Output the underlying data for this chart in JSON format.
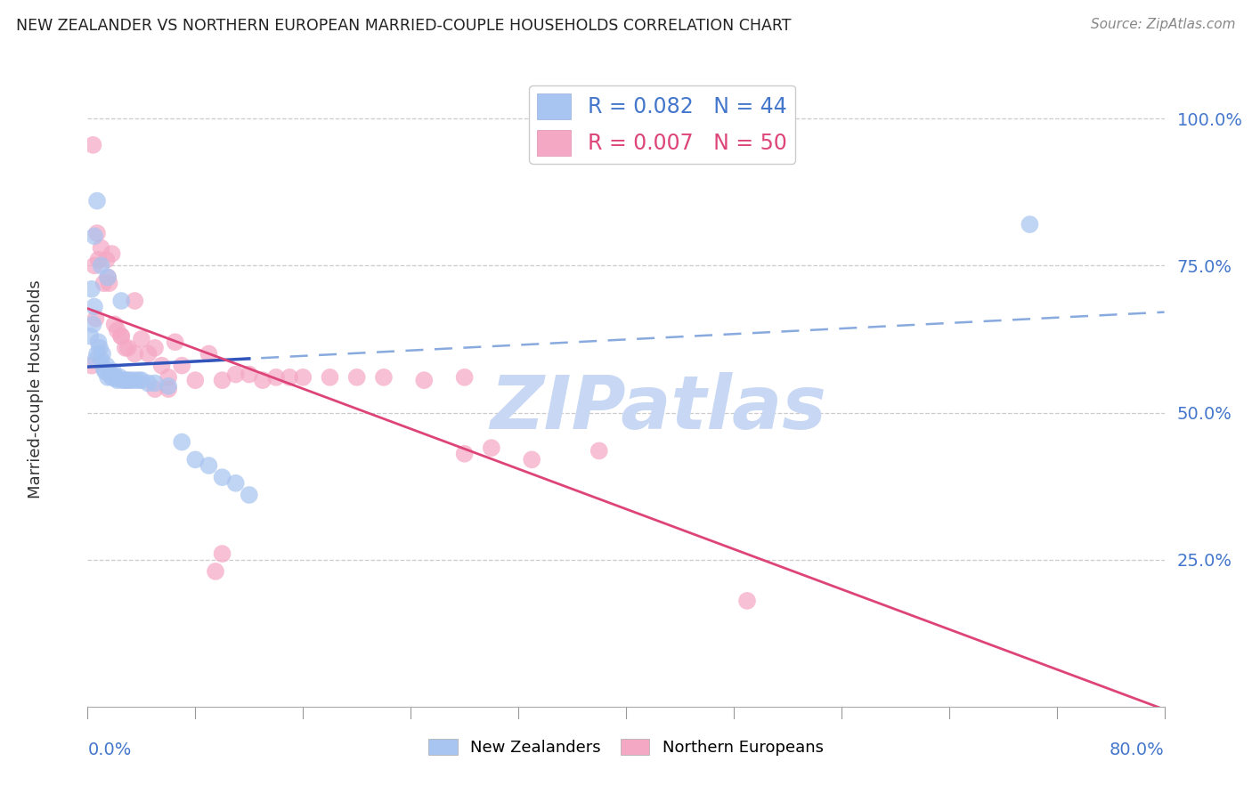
{
  "title": "NEW ZEALANDER VS NORTHERN EUROPEAN MARRIED-COUPLE HOUSEHOLDS CORRELATION CHART",
  "source": "Source: ZipAtlas.com",
  "ylabel": "Married-couple Households",
  "xtick_left_label": "0.0%",
  "xtick_right_label": "80.0%",
  "ytick_values": [
    0.25,
    0.5,
    0.75,
    1.0
  ],
  "ytick_labels": [
    "25.0%",
    "50.0%",
    "75.0%",
    "100.0%"
  ],
  "xmin": 0.0,
  "xmax": 0.8,
  "ymin": 0.0,
  "ymax": 1.08,
  "blue_scatter_color": "#a8c4f0",
  "pink_scatter_color": "#f5a8c4",
  "blue_line_color": "#3355bb",
  "pink_line_color": "#dd4477",
  "blue_dash_color": "#88aade",
  "nz_R": 0.082,
  "nz_N": 44,
  "ne_R": 0.007,
  "ne_N": 50,
  "nz_x": [
    0.002,
    0.003,
    0.004,
    0.005,
    0.006,
    0.007,
    0.008,
    0.009,
    0.01,
    0.011,
    0.012,
    0.013,
    0.014,
    0.015,
    0.016,
    0.017,
    0.018,
    0.019,
    0.02,
    0.021,
    0.022,
    0.024,
    0.026,
    0.028,
    0.03,
    0.032,
    0.035,
    0.038,
    0.04,
    0.045,
    0.05,
    0.06,
    0.07,
    0.08,
    0.09,
    0.1,
    0.11,
    0.12,
    0.005,
    0.007,
    0.01,
    0.015,
    0.025,
    0.7
  ],
  "nz_y": [
    0.63,
    0.71,
    0.65,
    0.68,
    0.59,
    0.6,
    0.62,
    0.61,
    0.59,
    0.6,
    0.575,
    0.57,
    0.58,
    0.56,
    0.57,
    0.565,
    0.56,
    0.57,
    0.56,
    0.558,
    0.555,
    0.56,
    0.555,
    0.555,
    0.555,
    0.555,
    0.555,
    0.555,
    0.555,
    0.55,
    0.55,
    0.545,
    0.45,
    0.42,
    0.41,
    0.39,
    0.38,
    0.36,
    0.8,
    0.86,
    0.75,
    0.73,
    0.69,
    0.82
  ],
  "ne_x": [
    0.004,
    0.005,
    0.007,
    0.008,
    0.01,
    0.012,
    0.014,
    0.016,
    0.018,
    0.02,
    0.022,
    0.025,
    0.028,
    0.03,
    0.035,
    0.04,
    0.045,
    0.05,
    0.055,
    0.06,
    0.065,
    0.07,
    0.08,
    0.09,
    0.1,
    0.11,
    0.12,
    0.13,
    0.14,
    0.15,
    0.16,
    0.18,
    0.2,
    0.22,
    0.25,
    0.28,
    0.003,
    0.006,
    0.015,
    0.025,
    0.035,
    0.05,
    0.06,
    0.1,
    0.3,
    0.38,
    0.095,
    0.49,
    0.28,
    0.33
  ],
  "ne_y": [
    0.955,
    0.75,
    0.805,
    0.76,
    0.78,
    0.72,
    0.76,
    0.72,
    0.77,
    0.65,
    0.64,
    0.63,
    0.61,
    0.61,
    0.69,
    0.625,
    0.6,
    0.61,
    0.58,
    0.56,
    0.62,
    0.58,
    0.555,
    0.6,
    0.555,
    0.565,
    0.565,
    0.555,
    0.56,
    0.56,
    0.56,
    0.56,
    0.56,
    0.56,
    0.555,
    0.56,
    0.58,
    0.66,
    0.73,
    0.63,
    0.6,
    0.54,
    0.54,
    0.26,
    0.44,
    0.435,
    0.23,
    0.18,
    0.43,
    0.42
  ],
  "watermark_text": "ZIPatlas",
  "watermark_color": "#c8d8f4",
  "bottom_legend": [
    "New Zealanders",
    "Northern Europeans"
  ]
}
